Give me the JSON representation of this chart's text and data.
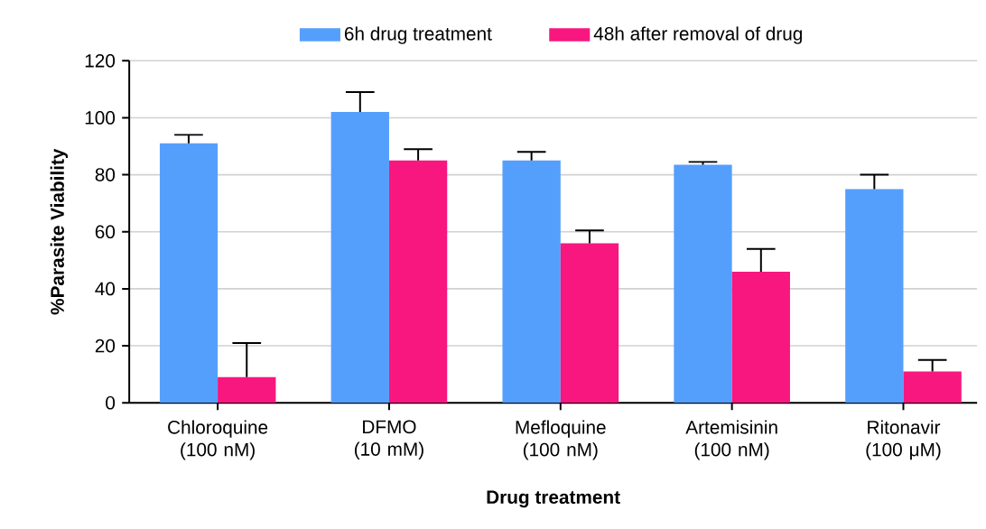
{
  "chart_data": {
    "type": "bar",
    "xlabel": "Drug treatment",
    "ylabel": "%Parasite Viability",
    "categories": [
      "Chloroquine (100 nM)",
      "DFMO (10 mM)",
      "Mefloquine (100 nM)",
      "Artemisinin (100 nM)",
      "Ritonavir (100 μM)"
    ],
    "series": [
      {
        "name": "6h drug treatment",
        "color": "#559ffc",
        "values": [
          91,
          102,
          85,
          83.5,
          75
        ],
        "errors": [
          [
            91,
            94
          ],
          [
            102,
            109
          ],
          [
            85,
            88
          ],
          [
            83.5,
            84.5
          ],
          [
            75,
            80
          ]
        ]
      },
      {
        "name": "48h after removal of drug",
        "color": "#f7177f",
        "values": [
          9,
          85,
          56,
          46,
          11
        ],
        "errors": [
          [
            9,
            21
          ],
          [
            85,
            89
          ],
          [
            56,
            60.5
          ],
          [
            46,
            54
          ],
          [
            11,
            15
          ]
        ]
      }
    ],
    "ylim": [
      0,
      120
    ],
    "yticks": [
      0,
      20,
      40,
      60,
      80,
      100,
      120
    ],
    "grid": "y",
    "legend": "top"
  }
}
